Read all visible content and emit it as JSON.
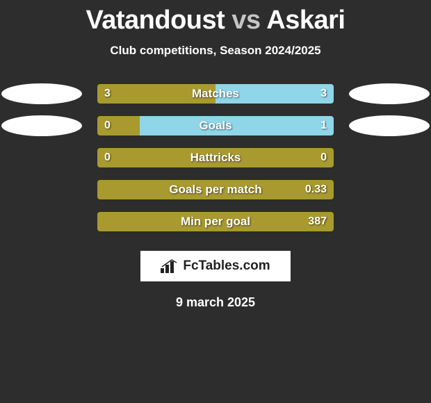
{
  "title": {
    "p1": "Vatandoust",
    "vs": "vs",
    "p2": "Askari"
  },
  "subtitle": "Club competitions, Season 2024/2025",
  "colors": {
    "left": "#a89a2f",
    "right": "#8ed6e8",
    "ellipse": "#ffffff"
  },
  "rows": [
    {
      "label": "Matches",
      "left_val": "3",
      "right_val": "3",
      "left_pct": 50,
      "show_ellipses": true
    },
    {
      "label": "Goals",
      "left_val": "0",
      "right_val": "1",
      "left_pct": 18,
      "show_ellipses": true
    },
    {
      "label": "Hattricks",
      "left_val": "0",
      "right_val": "0",
      "left_pct": 100,
      "show_ellipses": false
    },
    {
      "label": "Goals per match",
      "left_val": "",
      "right_val": "0.33",
      "left_pct": 100,
      "show_ellipses": false
    },
    {
      "label": "Min per goal",
      "left_val": "",
      "right_val": "387",
      "left_pct": 100,
      "show_ellipses": false
    }
  ],
  "logo": "FcTables.com",
  "date": "9 march 2025"
}
